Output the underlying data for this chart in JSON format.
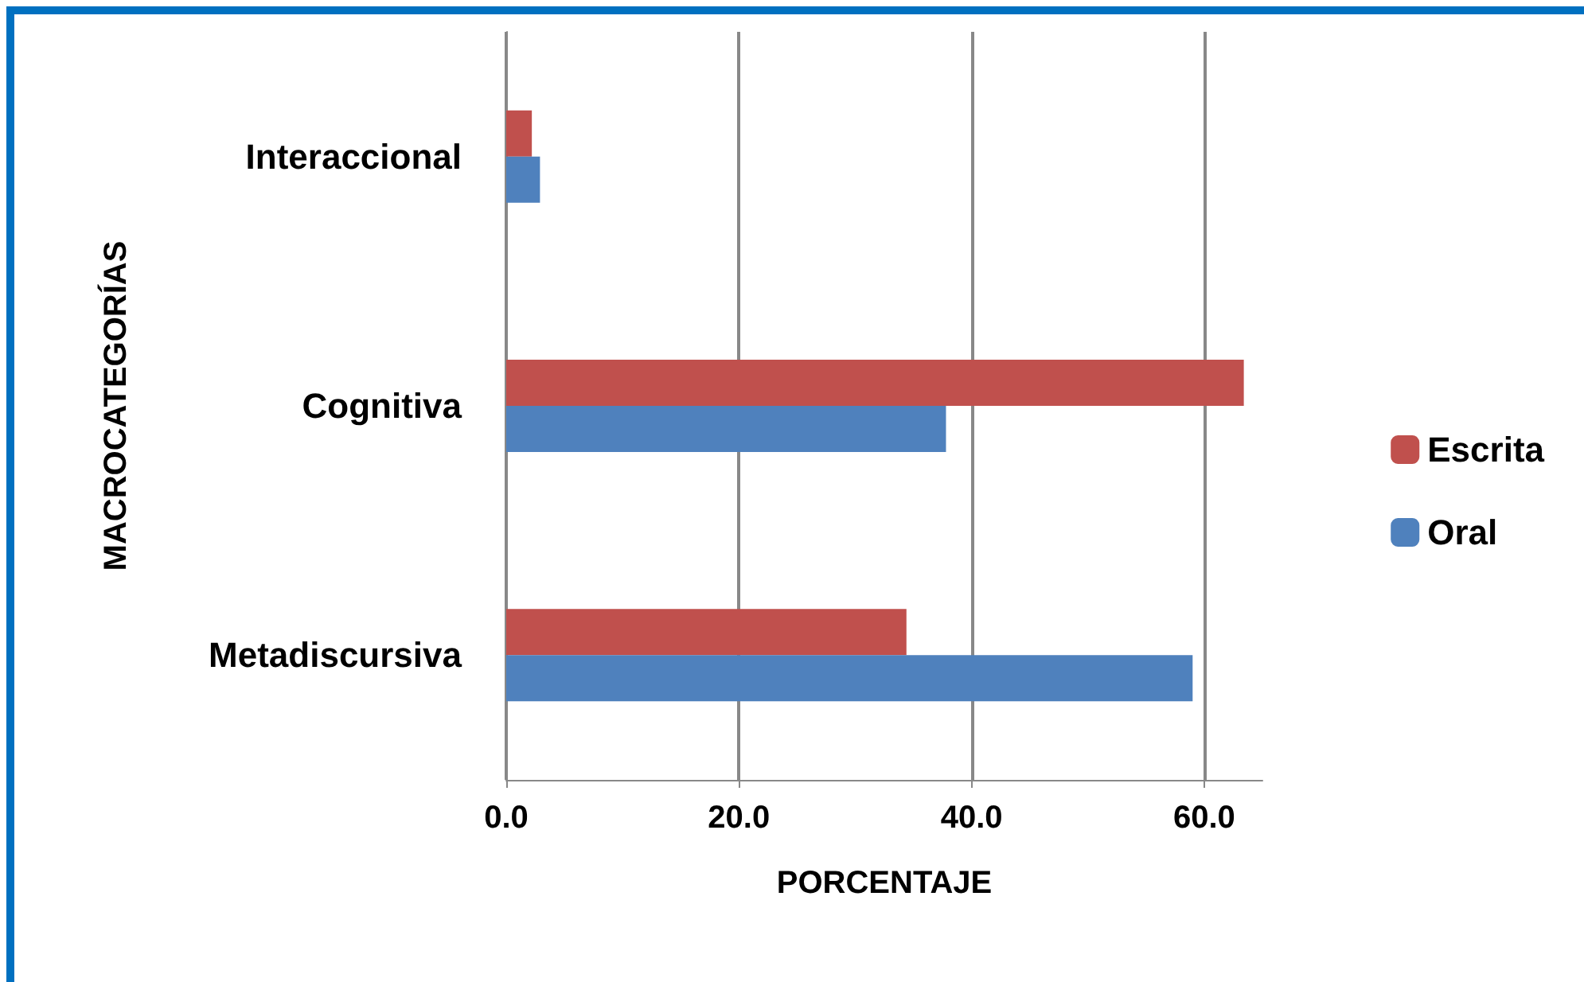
{
  "chart_data": {
    "type": "bar",
    "orientation": "horizontal",
    "xlabel": "PORCENTAJE",
    "ylabel": "MACROCATEGORÍAS",
    "categories": [
      "Interaccional",
      "Cognitiva",
      "Metadiscursiva"
    ],
    "series": [
      {
        "name": "Escrita",
        "color": "#c0504d",
        "values": [
          2.2,
          63.4,
          34.4
        ]
      },
      {
        "name": "Oral",
        "color": "#4f81bd",
        "values": [
          2.9,
          37.8,
          59.0
        ]
      }
    ],
    "xlim": [
      0,
      65
    ],
    "xticks": [
      {
        "value": 0,
        "label": "0.0"
      },
      {
        "value": 20,
        "label": "20.0"
      },
      {
        "value": 40,
        "label": "40.0"
      },
      {
        "value": 60,
        "label": "60.0"
      }
    ],
    "grid": "x",
    "legend": "right"
  }
}
